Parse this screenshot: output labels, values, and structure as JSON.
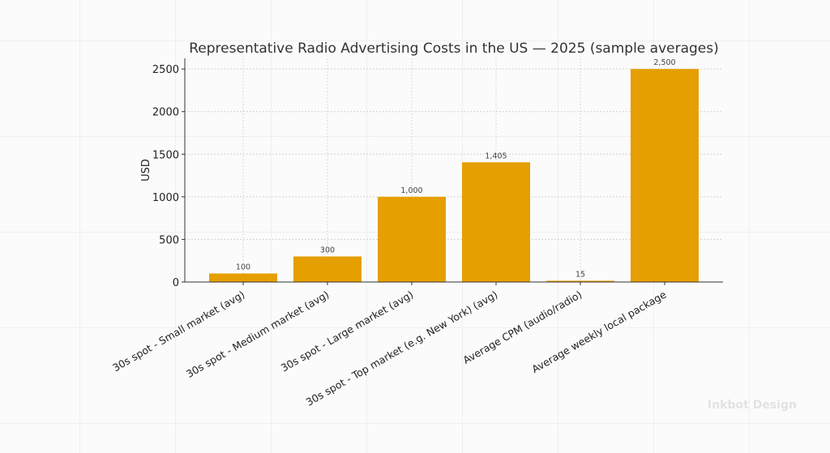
{
  "chart_data": {
    "type": "bar",
    "title": "Representative Radio Advertising Costs in the US — 2025 (sample averages)",
    "xlabel": "",
    "ylabel": "USD",
    "categories": [
      "30s spot - Small market (avg)",
      "30s spot - Medium market (avg)",
      "30s spot - Large market (avg)",
      "30s spot - Top market (e.g. New York) (avg)",
      "Average CPM (audio/radio)",
      "Average weekly local package"
    ],
    "values": [
      100,
      300,
      1000,
      1405,
      15,
      2500
    ],
    "data_labels": [
      "100",
      "300",
      "1,000",
      "1,405",
      "15",
      "2,500"
    ],
    "yticks": [
      0,
      500,
      1000,
      1500,
      2000,
      2500
    ],
    "ylim": [
      0,
      2625
    ],
    "grid": true,
    "bar_color": "#E69F00"
  },
  "watermark": "Inkbot Design"
}
